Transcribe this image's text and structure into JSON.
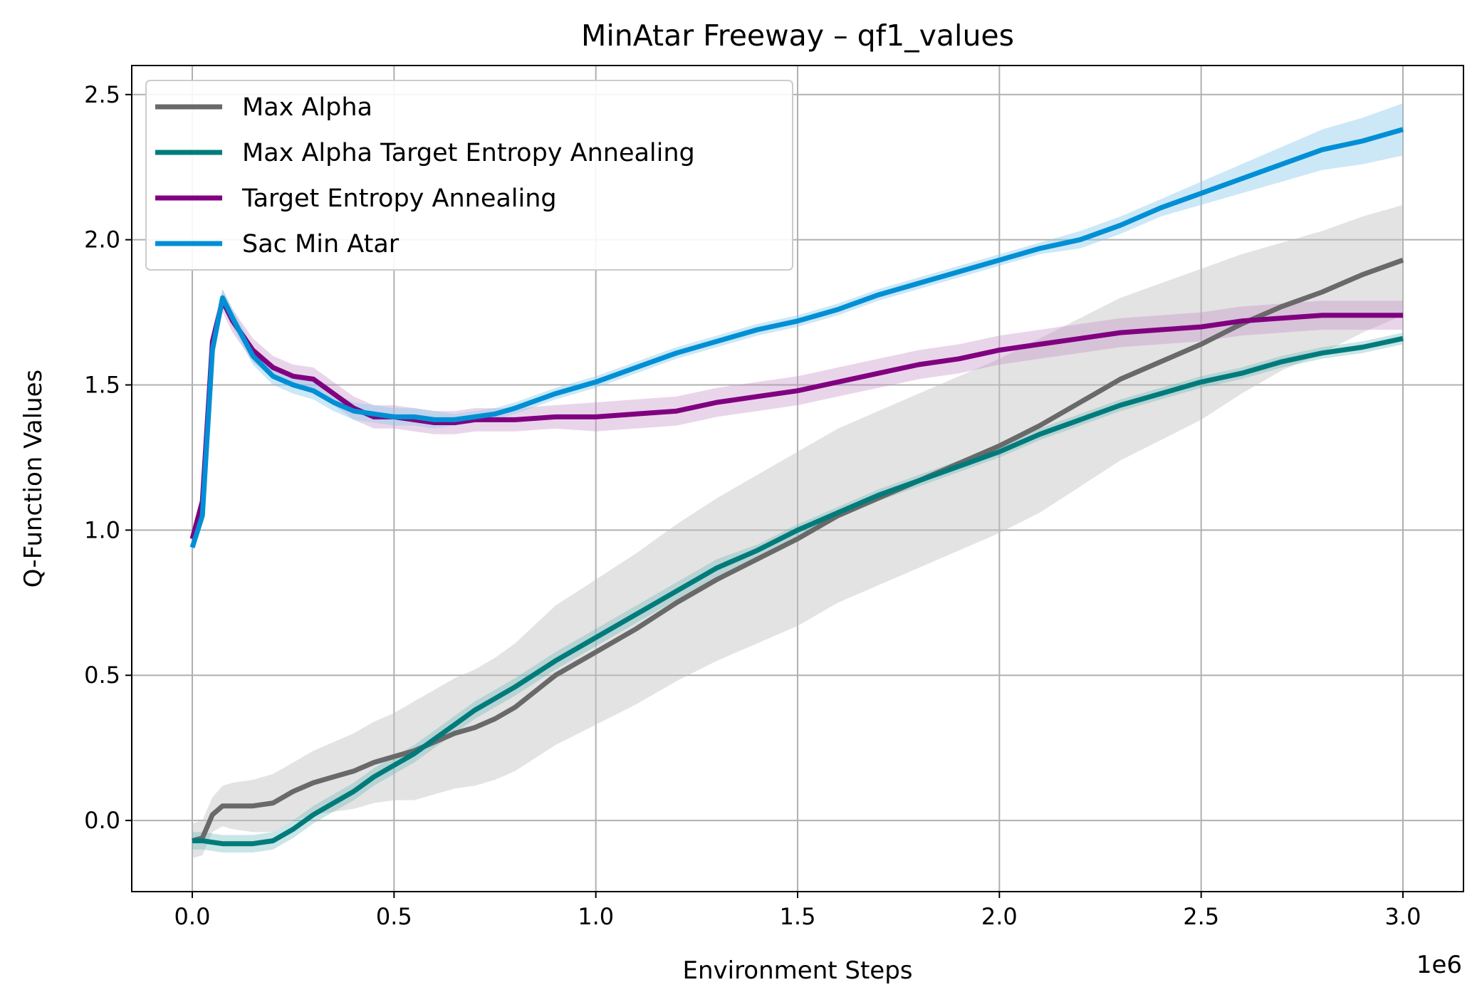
{
  "chart_data": {
    "type": "line",
    "title": "MinAtar Freeway – qf1_values",
    "xlabel": "Environment Steps",
    "ylabel": "Q-Function Values",
    "x_offset_label": "1e6",
    "xlim": [
      -0.15,
      3.15
    ],
    "ylim": [
      -0.245,
      2.6
    ],
    "x_ticks": [
      0.0,
      0.5,
      1.0,
      1.5,
      2.0,
      2.5,
      3.0
    ],
    "x_tick_labels": [
      "0.0",
      "0.5",
      "1.0",
      "1.5",
      "2.0",
      "2.5",
      "3.0"
    ],
    "y_ticks": [
      0.0,
      0.5,
      1.0,
      1.5,
      2.0,
      2.5
    ],
    "y_tick_labels": [
      "0.0",
      "0.5",
      "1.0",
      "1.5",
      "2.0",
      "2.5"
    ],
    "grid": true,
    "legend_position": "upper-left",
    "x": [
      0,
      0.025,
      0.05,
      0.075,
      0.1,
      0.15,
      0.2,
      0.25,
      0.3,
      0.35,
      0.4,
      0.45,
      0.5,
      0.55,
      0.6,
      0.65,
      0.7,
      0.75,
      0.8,
      0.9,
      1.0,
      1.1,
      1.2,
      1.3,
      1.4,
      1.5,
      1.6,
      1.7,
      1.8,
      1.9,
      2.0,
      2.1,
      2.2,
      2.3,
      2.4,
      2.5,
      2.6,
      2.7,
      2.8,
      2.9,
      3.0
    ],
    "series": [
      {
        "name": "Max Alpha",
        "color": "#696969",
        "band_color": "#c0c0c0",
        "band_opacity": 0.45,
        "values": [
          -0.07,
          -0.06,
          0.02,
          0.05,
          0.05,
          0.05,
          0.06,
          0.1,
          0.13,
          0.15,
          0.17,
          0.2,
          0.22,
          0.24,
          0.27,
          0.3,
          0.32,
          0.35,
          0.39,
          0.5,
          0.58,
          0.66,
          0.75,
          0.83,
          0.9,
          0.97,
          1.05,
          1.11,
          1.17,
          1.23,
          1.29,
          1.36,
          1.44,
          1.52,
          1.58,
          1.64,
          1.71,
          1.77,
          1.82,
          1.88,
          1.93
        ],
        "band": [
          0.06,
          0.06,
          0.06,
          0.07,
          0.08,
          0.09,
          0.1,
          0.1,
          0.11,
          0.12,
          0.13,
          0.14,
          0.15,
          0.17,
          0.18,
          0.19,
          0.2,
          0.21,
          0.22,
          0.24,
          0.25,
          0.26,
          0.27,
          0.28,
          0.29,
          0.3,
          0.3,
          0.3,
          0.3,
          0.3,
          0.3,
          0.3,
          0.29,
          0.28,
          0.27,
          0.26,
          0.24,
          0.22,
          0.21,
          0.2,
          0.19
        ]
      },
      {
        "name": "Max Alpha Target Entropy Annealing",
        "color": "#007b7b",
        "band_color": "#66b5b5",
        "band_opacity": 0.35,
        "values": [
          -0.07,
          -0.07,
          -0.075,
          -0.08,
          -0.08,
          -0.08,
          -0.07,
          -0.03,
          0.02,
          0.06,
          0.1,
          0.15,
          0.19,
          0.23,
          0.28,
          0.33,
          0.38,
          0.42,
          0.46,
          0.55,
          0.63,
          0.71,
          0.79,
          0.87,
          0.93,
          1.0,
          1.06,
          1.12,
          1.17,
          1.22,
          1.27,
          1.33,
          1.38,
          1.43,
          1.47,
          1.51,
          1.54,
          1.58,
          1.61,
          1.63,
          1.66
        ],
        "band": [
          0.03,
          0.03,
          0.03,
          0.03,
          0.03,
          0.03,
          0.03,
          0.03,
          0.03,
          0.03,
          0.03,
          0.03,
          0.03,
          0.03,
          0.03,
          0.03,
          0.03,
          0.03,
          0.03,
          0.03,
          0.03,
          0.03,
          0.03,
          0.03,
          0.02,
          0.02,
          0.02,
          0.02,
          0.02,
          0.02,
          0.02,
          0.02,
          0.02,
          0.02,
          0.02,
          0.02,
          0.02,
          0.02,
          0.02,
          0.02,
          0.02
        ]
      },
      {
        "name": "Target Entropy Annealing",
        "color": "#800080",
        "band_color": "#c690c6",
        "band_opacity": 0.38,
        "values": [
          0.97,
          1.1,
          1.65,
          1.79,
          1.72,
          1.62,
          1.56,
          1.53,
          1.52,
          1.47,
          1.42,
          1.39,
          1.39,
          1.38,
          1.37,
          1.37,
          1.38,
          1.38,
          1.38,
          1.39,
          1.39,
          1.4,
          1.41,
          1.44,
          1.46,
          1.48,
          1.51,
          1.54,
          1.57,
          1.59,
          1.62,
          1.64,
          1.66,
          1.68,
          1.69,
          1.7,
          1.72,
          1.73,
          1.74,
          1.74,
          1.74
        ],
        "band": [
          0.02,
          0.03,
          0.04,
          0.04,
          0.04,
          0.04,
          0.04,
          0.04,
          0.04,
          0.04,
          0.04,
          0.04,
          0.04,
          0.04,
          0.04,
          0.04,
          0.04,
          0.04,
          0.04,
          0.04,
          0.05,
          0.05,
          0.05,
          0.05,
          0.05,
          0.05,
          0.05,
          0.05,
          0.05,
          0.05,
          0.05,
          0.05,
          0.05,
          0.05,
          0.05,
          0.05,
          0.05,
          0.05,
          0.05,
          0.05,
          0.05
        ]
      },
      {
        "name": "Sac Min Atar",
        "color": "#008fd5",
        "band_color": "#8fcbee",
        "band_opacity": 0.45,
        "values": [
          0.94,
          1.05,
          1.62,
          1.8,
          1.73,
          1.6,
          1.53,
          1.5,
          1.48,
          1.44,
          1.41,
          1.4,
          1.39,
          1.39,
          1.38,
          1.38,
          1.39,
          1.4,
          1.42,
          1.47,
          1.51,
          1.56,
          1.61,
          1.65,
          1.69,
          1.72,
          1.76,
          1.81,
          1.85,
          1.89,
          1.93,
          1.97,
          2.0,
          2.05,
          2.11,
          2.16,
          2.21,
          2.26,
          2.31,
          2.34,
          2.38
        ],
        "band": [
          0.02,
          0.02,
          0.03,
          0.03,
          0.03,
          0.03,
          0.03,
          0.03,
          0.03,
          0.03,
          0.03,
          0.03,
          0.03,
          0.03,
          0.03,
          0.02,
          0.02,
          0.02,
          0.02,
          0.02,
          0.02,
          0.02,
          0.02,
          0.02,
          0.02,
          0.02,
          0.02,
          0.02,
          0.02,
          0.02,
          0.02,
          0.02,
          0.03,
          0.03,
          0.03,
          0.04,
          0.05,
          0.06,
          0.07,
          0.08,
          0.09
        ]
      }
    ]
  }
}
